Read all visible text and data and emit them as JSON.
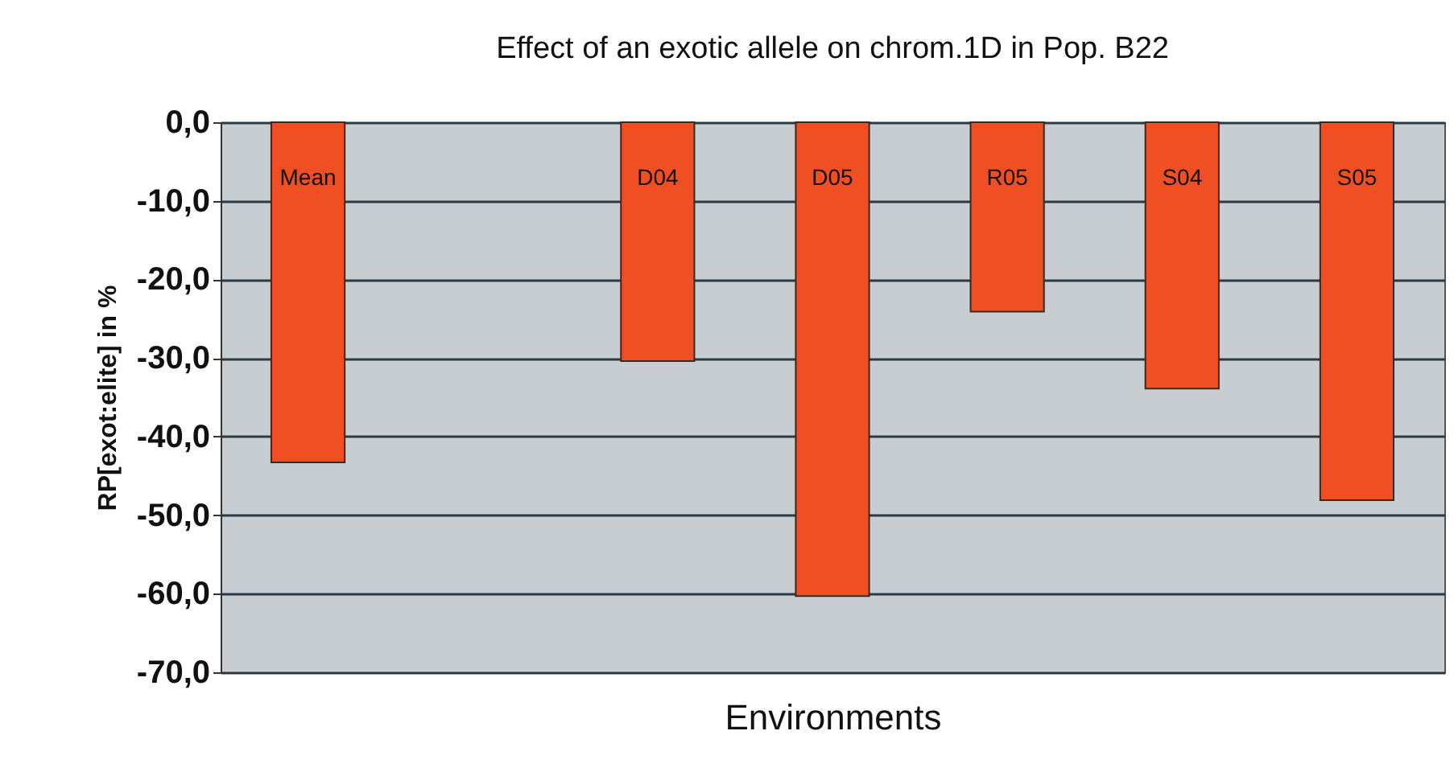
{
  "chart_data": {
    "type": "bar",
    "title": "Effect of an exotic allele on chrom.1D in Pop. B22",
    "xlabel": "Environments",
    "ylabel": "RP[exot:elite] in %",
    "categories": [
      "Mean",
      null,
      "D04",
      "D05",
      "R05",
      "S04",
      "S05"
    ],
    "values": [
      -43.3,
      null,
      -30.4,
      -60.3,
      -24.1,
      -33.9,
      -48.1
    ],
    "color": "#f04e23",
    "ylim": [
      -70,
      0
    ],
    "yticks": [
      {
        "value": 0,
        "label": "0,0"
      },
      {
        "value": -10,
        "label": "-10,0"
      },
      {
        "value": -20,
        "label": "-20,0"
      },
      {
        "value": -30,
        "label": "-30,0"
      },
      {
        "value": -40,
        "label": "-40,0"
      },
      {
        "value": -50,
        "label": "-50,0"
      },
      {
        "value": -60,
        "label": "-60,0"
      },
      {
        "value": -70,
        "label": "-70,0"
      }
    ],
    "grid": "y",
    "tick_labels": "y"
  }
}
